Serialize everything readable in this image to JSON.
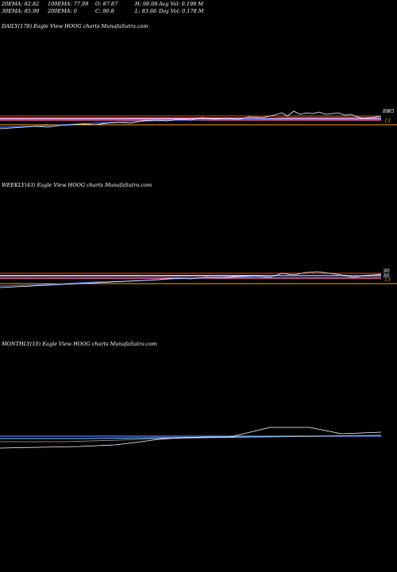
{
  "header": {
    "row1": [
      "20EMA: 82.82",
      "100EMA: 77.99",
      "O: 87.87",
      "H: 98.08",
      "Avg Vol: 0.198 M"
    ],
    "row2": [
      "30EMA: 85.99",
      "200EMA: 0",
      "C: 90.8",
      "L: 83.66",
      "Day Vol: 0.178  M"
    ]
  },
  "panels": [
    {
      "title": "DAILY(178) Eagle   View  HOOG charts MunafaSutra.com",
      "price_tags": [
        "89",
        "85",
        "13"
      ]
    },
    {
      "title": "WEEKLY(43) Eagle   View  HOOG charts MunafaSutra.com",
      "price_tags": [
        "90",
        "86",
        "13"
      ]
    },
    {
      "title": "MONTHLY(10) Eagle   View  HOOG charts MunafaSutra.com",
      "price_tags": []
    }
  ],
  "chart_data": [
    {
      "type": "line",
      "title": "DAILY(178) Eagle   View  HOOG charts MunafaSutra.com",
      "series": [],
      "x": [
        0,
        20,
        40,
        60,
        80,
        100,
        120,
        140,
        160,
        178
      ],
      "ylim": [
        0,
        100
      ],
      "close": [
        18,
        24,
        30,
        40,
        48,
        58,
        66,
        80,
        85,
        90
      ],
      "colors": {
        "price": "#ffffff",
        "ema_fast": "#4169e1",
        "ema_slow": "#dda0dd",
        "support": "#ff4500",
        "resistance": "#ffa500"
      }
    },
    {
      "type": "line",
      "title": "WEEKLY(43) Eagle   View  HOOG charts MunafaSutra.com",
      "series": [],
      "x": [
        0,
        5,
        10,
        15,
        20,
        25,
        30,
        35,
        43
      ],
      "ylim": [
        0,
        100
      ],
      "close": [
        20,
        30,
        42,
        52,
        64,
        74,
        82,
        86,
        90
      ],
      "colors": {
        "price": "#ffffff",
        "ema_fast": "#4169e1",
        "ema_slow": "#dda0dd"
      }
    },
    {
      "type": "line",
      "title": "MONTHLY(10) Eagle   View  HOOG charts MunafaSutra.com",
      "series": [],
      "x": [
        1,
        2,
        3,
        4,
        5,
        6,
        7,
        8,
        9,
        10
      ],
      "ylim": [
        0,
        100
      ],
      "close": [
        30,
        35,
        42,
        55,
        62,
        70,
        88,
        86,
        80,
        84
      ],
      "colors": {
        "price": "#ffffff",
        "ema_fast": "#4169e1",
        "ema_slow": "#87cefa"
      }
    }
  ]
}
